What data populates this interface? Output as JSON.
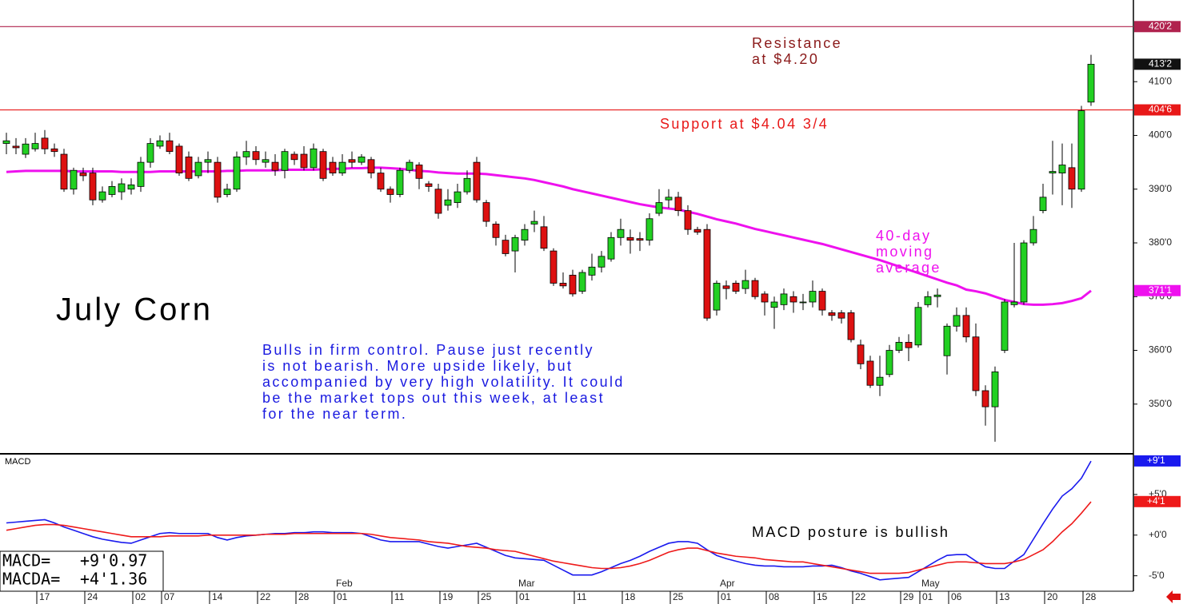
{
  "chart_data": [
    {
      "type": "candlestick",
      "title": "July Corn",
      "categories": [
        null,
        null,
        null,
        null,
        "17",
        null,
        null,
        null,
        null,
        "24",
        null,
        null,
        null,
        null,
        "02",
        null,
        null,
        "07",
        null,
        null,
        null,
        null,
        "14",
        null,
        null,
        null,
        null,
        "22",
        null,
        null,
        null,
        "28",
        null,
        null,
        null,
        "01",
        null,
        null,
        null,
        null,
        null,
        "11",
        null,
        null,
        null,
        null,
        "19",
        null,
        null,
        null,
        "25",
        null,
        null,
        null,
        "01",
        null,
        null,
        null,
        null,
        null,
        "11",
        null,
        null,
        null,
        null,
        "18",
        null,
        null,
        null,
        null,
        "25",
        null,
        null,
        null,
        null,
        "01",
        null,
        null,
        null,
        null,
        "08",
        null,
        null,
        null,
        null,
        "15",
        null,
        null,
        null,
        "22",
        null,
        null,
        null,
        null,
        "29",
        null,
        "01",
        null,
        null,
        "06",
        null,
        null,
        null,
        null,
        "13",
        null,
        null,
        null,
        null,
        "20",
        null,
        null,
        null,
        "28"
      ],
      "months": [
        null,
        null,
        null,
        null,
        null,
        null,
        null,
        null,
        null,
        null,
        null,
        null,
        null,
        null,
        null,
        null,
        null,
        null,
        null,
        null,
        null,
        null,
        null,
        null,
        null,
        null,
        null,
        null,
        null,
        null,
        null,
        null,
        null,
        null,
        null,
        "Feb",
        null,
        null,
        null,
        null,
        null,
        null,
        null,
        null,
        null,
        null,
        null,
        null,
        null,
        null,
        null,
        null,
        null,
        null,
        "Mar",
        null,
        null,
        null,
        null,
        null,
        null,
        null,
        null,
        null,
        null,
        null,
        null,
        null,
        null,
        null,
        null,
        null,
        null,
        null,
        null,
        "Apr",
        null,
        null,
        null,
        null,
        null,
        null,
        null,
        null,
        null,
        null,
        null,
        null,
        null,
        null,
        null,
        null,
        null,
        null,
        null,
        null,
        "May",
        null,
        null,
        null,
        null,
        null,
        null,
        null,
        null,
        null,
        null,
        null,
        null,
        null,
        null,
        null,
        null,
        null
      ],
      "open": [
        398.5,
        398,
        396.5,
        397.5,
        399.5,
        397.5,
        396.5,
        390,
        393,
        393,
        388,
        389,
        389.5,
        390,
        390.5,
        395,
        398,
        399,
        398,
        396,
        392.5,
        395,
        395,
        389,
        390,
        396,
        397,
        395,
        395,
        393.5,
        396.5,
        396.5,
        394,
        397,
        395,
        393,
        395.5,
        395,
        395.5,
        393,
        390,
        389,
        393.5,
        394.5,
        391,
        390,
        387,
        387.5,
        389.5,
        395,
        387.5,
        383.5,
        380.5,
        378.5,
        380.5,
        383.5,
        383,
        378.5,
        372.5,
        374,
        371,
        374,
        375.5,
        377,
        381,
        381,
        380.8,
        380.5,
        385.5,
        388,
        388.5,
        386,
        382.5,
        382.5,
        367.5,
        372,
        372.5,
        371.5,
        373,
        370.5,
        368,
        368.5,
        370,
        369,
        369,
        371,
        367,
        367,
        367,
        361,
        358,
        353.5,
        355.5,
        360,
        361.5,
        361,
        368.5,
        370,
        359,
        364.5,
        366.5,
        362.5,
        352.5,
        349.5,
        360,
        368.5,
        369,
        380,
        386,
        393,
        393,
        394,
        390,
        406.2
      ],
      "high": [
        400.5,
        399.5,
        399.5,
        400.5,
        401,
        398.5,
        397.5,
        394,
        394,
        394,
        390.5,
        391.5,
        392,
        392,
        396,
        399.5,
        400,
        400.5,
        398.5,
        397,
        396,
        397,
        396,
        391,
        397,
        399,
        398,
        397,
        396.5,
        397.5,
        397,
        398,
        398.5,
        397.5,
        396,
        396.5,
        397,
        396.5,
        396,
        394,
        390.5,
        394,
        395.5,
        395,
        391.5,
        391,
        390,
        391,
        393.5,
        396,
        388,
        384,
        381.5,
        381.5,
        383.5,
        386,
        385,
        379,
        374.5,
        375,
        375,
        378,
        378.5,
        382,
        384.5,
        382.5,
        382,
        385.5,
        390,
        390,
        389.5,
        387,
        383,
        383.5,
        373,
        373,
        373,
        375,
        373.5,
        371,
        370,
        371.5,
        371,
        370.5,
        373,
        371.5,
        367.5,
        367.5,
        367.5,
        362,
        359,
        359,
        361,
        362.5,
        363,
        369,
        371,
        371.5,
        365,
        368,
        368,
        365,
        353.5,
        357,
        369.5,
        380,
        380.5,
        385,
        391,
        399,
        398.5,
        398.5,
        405.5,
        415
      ],
      "low": [
        396.5,
        396.5,
        395.8,
        397,
        396.5,
        396,
        389.5,
        389,
        391.5,
        387,
        387.5,
        388.5,
        388,
        389,
        389.5,
        394,
        397.5,
        396.5,
        392.5,
        391.5,
        392,
        393,
        387.5,
        388.5,
        389.5,
        394.5,
        394.5,
        394,
        392.5,
        392,
        394.5,
        393.5,
        393.5,
        391.5,
        392.5,
        392.5,
        394,
        394.5,
        392,
        389.5,
        387.5,
        388.5,
        393,
        390,
        389.5,
        384.5,
        386,
        386.5,
        389,
        387.5,
        383,
        379.5,
        377.5,
        374.5,
        379.5,
        382,
        378.5,
        372,
        371.5,
        370,
        370.5,
        373,
        374.5,
        376.5,
        379.5,
        378,
        378.5,
        379.5,
        385,
        386.5,
        385,
        381.5,
        381.5,
        365.5,
        366.5,
        369.5,
        370.5,
        370.5,
        369.5,
        366.5,
        364,
        367.5,
        367,
        367.5,
        368,
        366.5,
        365.5,
        365,
        361.5,
        356.5,
        353,
        351.5,
        355,
        359.5,
        358,
        360.5,
        368,
        368,
        355.5,
        363.5,
        361.5,
        351.5,
        346,
        343,
        359.5,
        368,
        368.5,
        379.5,
        385.5,
        389,
        387,
        386.5,
        389.5,
        405.5
      ],
      "close": [
        399,
        397.7,
        398.4,
        398.5,
        397.5,
        397,
        390,
        393.5,
        392.5,
        388,
        389.5,
        390.5,
        391,
        390.8,
        395,
        398.5,
        399,
        397,
        393,
        392,
        395,
        395.5,
        388.5,
        390,
        396,
        397,
        395.5,
        395.5,
        393.5,
        397,
        395.5,
        394,
        397.5,
        392,
        393,
        395,
        395,
        396,
        393,
        390,
        389,
        393.5,
        395,
        392,
        390.5,
        385.5,
        388,
        389.5,
        392,
        388,
        384,
        381,
        378,
        381,
        382.5,
        384,
        379,
        372.5,
        372,
        370.5,
        374.5,
        375.5,
        377.5,
        381,
        382.5,
        380.5,
        380.5,
        384.5,
        387.5,
        388.5,
        386,
        382.5,
        382,
        366,
        372.5,
        371.5,
        371,
        373,
        370,
        369,
        369,
        370.5,
        369,
        369,
        371,
        367.5,
        366.5,
        366,
        362,
        357.5,
        353.5,
        355,
        360,
        361.5,
        360.5,
        368,
        370,
        370.3,
        364.5,
        366.5,
        362.5,
        352.5,
        349.5,
        356,
        369,
        369,
        380,
        382.5,
        388.5,
        393.3,
        394.5,
        390,
        404.6,
        413.25
      ],
      "up_color": "#22d022",
      "down_color": "#dd1111",
      "ylim": [
        340.9,
        425.2
      ],
      "yticks": [
        {
          "value": 350,
          "label": "350'0"
        },
        {
          "value": 360,
          "label": "360'0"
        },
        {
          "value": 370,
          "label": "370'0"
        },
        {
          "value": 380,
          "label": "380'0"
        },
        {
          "value": 390,
          "label": "390'0"
        },
        {
          "value": 400,
          "label": "400'0"
        },
        {
          "value": 410,
          "label": "410'0"
        }
      ],
      "moving_average": {
        "color": "#ee11ee",
        "values": [
          393.2,
          393.3,
          393.4,
          393.4,
          393.4,
          393.4,
          393.4,
          393.3,
          393.3,
          393.3,
          393.3,
          393.3,
          393.2,
          393.2,
          393.2,
          393.2,
          393.3,
          393.3,
          393.3,
          393.3,
          393.3,
          393.3,
          393.3,
          393.4,
          393.4,
          393.5,
          393.5,
          393.5,
          393.5,
          393.6,
          393.6,
          393.6,
          393.6,
          393.7,
          393.8,
          393.8,
          393.9,
          393.9,
          394.0,
          394.0,
          393.9,
          393.8,
          393.6,
          393.4,
          393.3,
          393.1,
          393.0,
          392.9,
          392.9,
          392.9,
          392.8,
          392.6,
          392.4,
          392.2,
          392.0,
          391.7,
          391.3,
          390.9,
          390.5,
          390.0,
          389.6,
          389.2,
          388.8,
          388.4,
          388.0,
          387.6,
          387.2,
          386.9,
          386.6,
          386.4,
          386.2,
          385.8,
          385.4,
          384.9,
          384.4,
          384.0,
          383.6,
          383.1,
          382.6,
          382.2,
          381.8,
          381.4,
          381.0,
          380.6,
          380.2,
          379.8,
          379.3,
          378.8,
          378.3,
          377.8,
          377.3,
          376.8,
          376.2,
          375.6,
          375.0,
          374.4,
          373.8,
          373.2,
          372.6,
          372.1,
          371.3,
          371.0,
          370.6,
          370.0,
          369.4,
          369.0,
          368.6,
          368.5,
          368.5,
          368.6,
          368.8,
          369.2,
          369.7,
          371.1
        ]
      },
      "levels": [
        {
          "value": 420.25,
          "label": "420'2",
          "color": "#b0224e"
        },
        {
          "value": 404.75,
          "label": "404'6",
          "color": "#e81818"
        }
      ],
      "last_price": {
        "value": 413.25,
        "label": "413'2",
        "color": "#111111"
      },
      "ma_last": {
        "value": 371.125,
        "label": "371'1",
        "color": "#ee11ee"
      },
      "notes": {
        "resistance": [
          "Resistance",
          "at $4.20"
        ],
        "support": "Support at $4.04 3/4",
        "moving_average": [
          "40-day",
          "moving",
          "average"
        ],
        "comment": [
          "Bulls in firm control. Pause just recently",
          "is not bearish. More upside likely, but",
          "accompanied by very high volatility. It could",
          "be the market tops out this week, at least",
          "for the near term."
        ]
      }
    },
    {
      "type": "line",
      "title": "MACD",
      "series": [
        {
          "color": "#1a1aee",
          "values": [
            1.5,
            1.6,
            1.7,
            1.8,
            1.9,
            1.5,
            1.0,
            0.6,
            0.2,
            -0.2,
            -0.5,
            -0.7,
            -0.9,
            -1.0,
            -0.6,
            -0.2,
            0.2,
            0.3,
            0.2,
            0.2,
            0.2,
            0.2,
            -0.3,
            -0.6,
            -0.3,
            -0.1,
            0.0,
            0.1,
            0.2,
            0.2,
            0.3,
            0.3,
            0.4,
            0.4,
            0.3,
            0.3,
            0.3,
            0.2,
            -0.2,
            -0.6,
            -0.8,
            -0.8,
            -0.8,
            -0.8,
            -1.1,
            -1.4,
            -1.6,
            -1.4,
            -1.2,
            -1.0,
            -1.5,
            -2.0,
            -2.5,
            -2.8,
            -2.9,
            -3.0,
            -3.1,
            -3.7,
            -4.3,
            -4.9,
            -4.9,
            -4.9,
            -4.5,
            -4.0,
            -3.5,
            -3.1,
            -2.6,
            -2.0,
            -1.5,
            -1.0,
            -0.8,
            -0.8,
            -1.0,
            -1.8,
            -2.5,
            -2.9,
            -3.2,
            -3.5,
            -3.7,
            -3.8,
            -3.8,
            -3.9,
            -3.9,
            -3.9,
            -3.8,
            -3.8,
            -3.7,
            -4.0,
            -4.4,
            -4.7,
            -5.1,
            -5.5,
            -5.4,
            -5.3,
            -5.2,
            -4.5,
            -3.8,
            -3.1,
            -2.5,
            -2.4,
            -2.4,
            -3.2,
            -3.9,
            -4.1,
            -4.1,
            -3.2,
            -2.4,
            -0.5,
            1.4,
            3.2,
            4.8,
            5.7,
            7.0,
            9.1
          ]
        },
        {
          "color": "#ee1a1a",
          "values": [
            0.6,
            0.8,
            1.0,
            1.2,
            1.3,
            1.3,
            1.2,
            1.0,
            0.8,
            0.6,
            0.4,
            0.2,
            0.0,
            -0.2,
            -0.2,
            -0.2,
            -0.2,
            -0.1,
            -0.1,
            -0.1,
            -0.1,
            0.0,
            0.0,
            0.0,
            0.0,
            0.0,
            0.0,
            0.1,
            0.1,
            0.1,
            0.2,
            0.2,
            0.2,
            0.2,
            0.2,
            0.2,
            0.2,
            0.2,
            0.1,
            -0.1,
            -0.3,
            -0.4,
            -0.5,
            -0.6,
            -0.8,
            -0.9,
            -1.0,
            -1.2,
            -1.4,
            -1.5,
            -1.6,
            -1.8,
            -1.9,
            -2.0,
            -2.3,
            -2.6,
            -2.9,
            -3.2,
            -3.4,
            -3.6,
            -3.8,
            -4.0,
            -4.1,
            -4.1,
            -4.0,
            -3.8,
            -3.5,
            -3.1,
            -2.6,
            -2.1,
            -1.8,
            -1.6,
            -1.6,
            -1.9,
            -2.2,
            -2.4,
            -2.6,
            -2.7,
            -2.8,
            -3.0,
            -3.1,
            -3.2,
            -3.3,
            -3.3,
            -3.5,
            -3.7,
            -3.9,
            -4.1,
            -4.3,
            -4.5,
            -4.7,
            -4.7,
            -4.7,
            -4.7,
            -4.6,
            -4.3,
            -4.0,
            -3.7,
            -3.4,
            -3.3,
            -3.3,
            -3.4,
            -3.5,
            -3.5,
            -3.5,
            -3.3,
            -3.0,
            -2.4,
            -1.8,
            -0.8,
            0.4,
            1.4,
            2.7,
            4.1
          ]
        }
      ],
      "ylim": [
        -6.9,
        10.0
      ],
      "yticks": [
        {
          "value": -5,
          "label": "-5'0"
        },
        {
          "value": 0,
          "label": "+0'0"
        },
        {
          "value": 5,
          "label": "+5'0"
        }
      ],
      "end_labels": [
        {
          "value": 9.125,
          "label": "+9'1",
          "color": "#1a1aee"
        },
        {
          "value": 4.125,
          "label": "+4'1",
          "color": "#ee1a1a"
        }
      ],
      "readout": [
        [
          "MACD=",
          "+9'0.97"
        ],
        [
          "MACDA=",
          "+4'1.36"
        ]
      ],
      "note": "MACD posture is bullish"
    }
  ]
}
